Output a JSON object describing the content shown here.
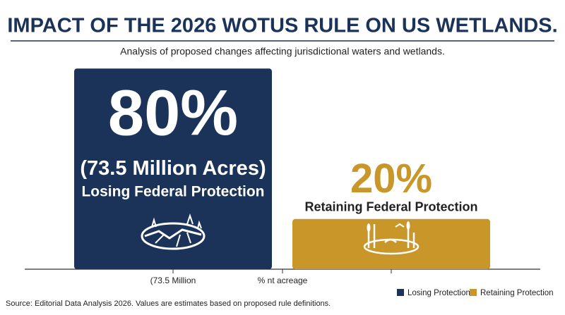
{
  "chart_data": {
    "type": "bar",
    "title": "IMPACT OF THE 2026 WOTUS RULE ON US WETLANDS.",
    "subtitle": "Analysis of proposed changes affecting jurisdictional waters and wetlands.",
    "categories": [
      null,
      null
    ],
    "series": [
      {
        "name": "Losing Protection",
        "color": "#1b3358",
        "values": [
          80,
          null
        ],
        "value_labels": [
          "80%",
          null
        ]
      },
      {
        "name": "Retaining Protection",
        "color": "#c9962a",
        "values": [
          null,
          20
        ],
        "value_labels": [
          null,
          "20%"
        ]
      }
    ],
    "bar_annotations": [
      {
        "acres": "(73.5 Million Acres)",
        "status": "Losing Federal Protection"
      },
      {
        "status": "Retaining Federal Protection"
      }
    ],
    "x_axis_labels": [
      "(73.5 Million",
      "% nt acreage"
    ],
    "ylim": [
      0,
      100
    ],
    "source": "Source: Editorial Data Analysis 2026. Values are estimates based on proposed rule definitions."
  }
}
